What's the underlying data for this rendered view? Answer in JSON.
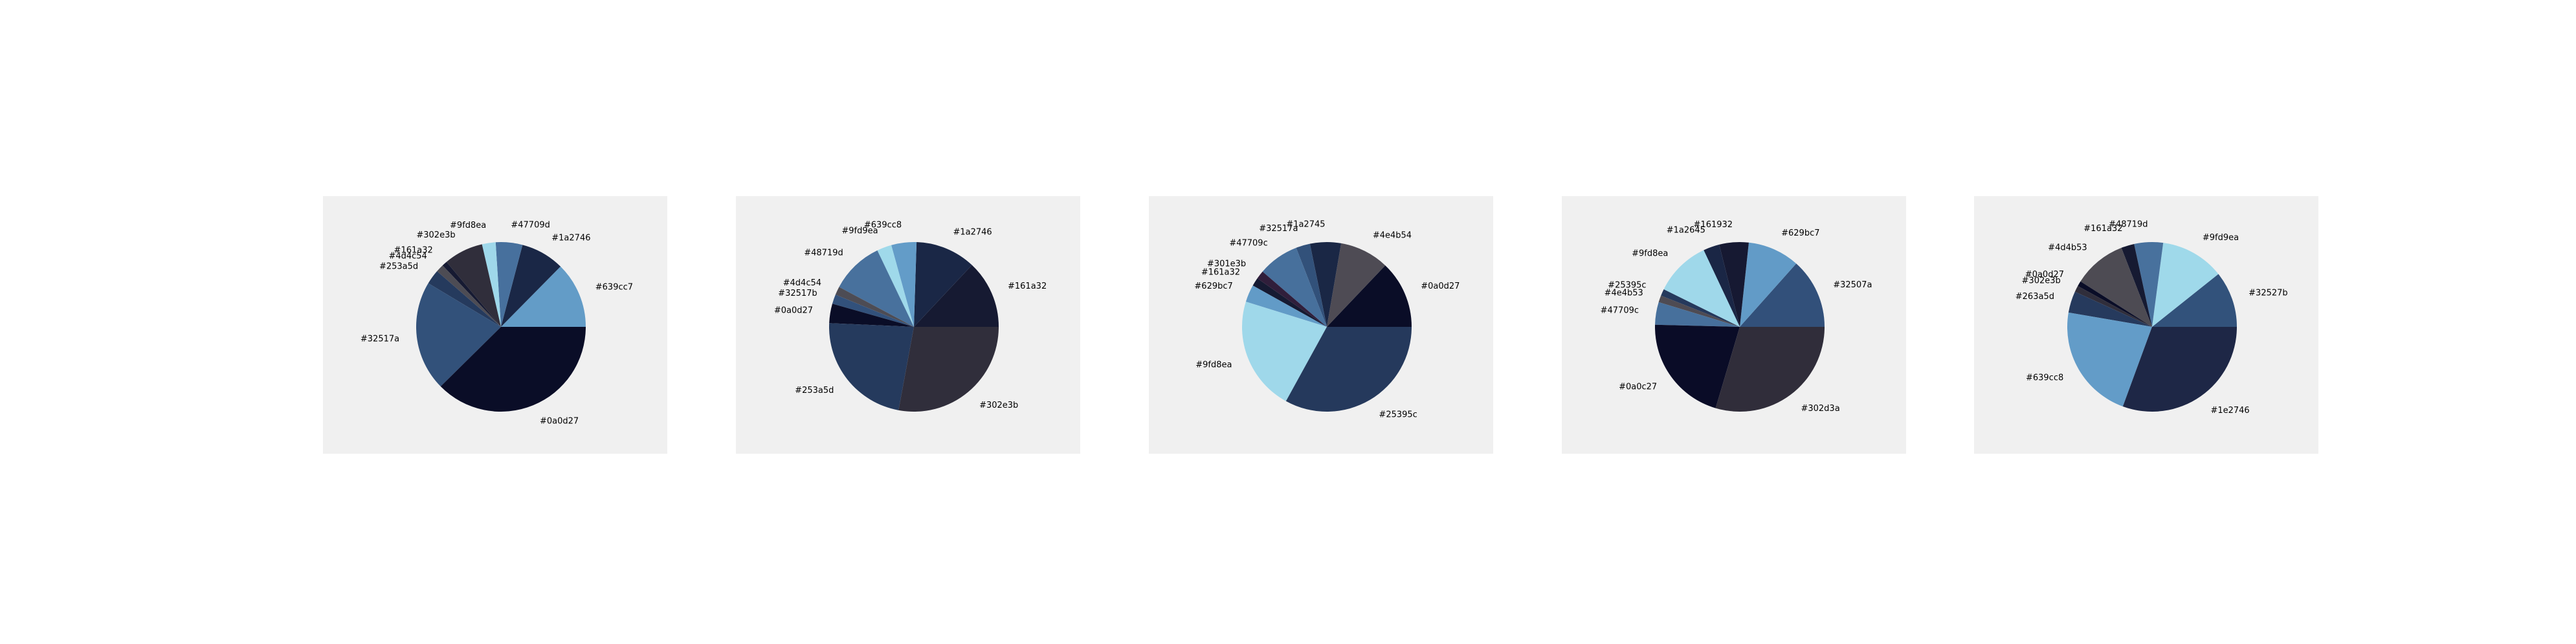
{
  "chart_data": [
    {
      "type": "pie",
      "labels": [
        "#639cc7",
        "#1a2746",
        "#47709d",
        "#9fd8ea",
        "#302e3b",
        "#161a32",
        "#4d4c54",
        "#253a5d",
        "#32517a",
        "#0a0d27"
      ],
      "colors": [
        "#639cc7",
        "#1a2746",
        "#47709d",
        "#9fd8ea",
        "#302e3b",
        "#161a32",
        "#4d4c54",
        "#253a5d",
        "#32517a",
        "#0a0d27"
      ],
      "values": [
        12.6,
        8.3,
        5.1,
        2.6,
        7.5,
        1.0,
        1.5,
        2.8,
        21.0,
        37.6
      ]
    },
    {
      "type": "pie",
      "labels": [
        "#161a32",
        "#1a2746",
        "#639cc8",
        "#9fd9ea",
        "#48719d",
        "#4d4c54",
        "#32517b",
        "#0a0d27",
        "#253a5d",
        "#302e3b"
      ],
      "colors": [
        "#161a32",
        "#1a2746",
        "#639cc8",
        "#9fd9ea",
        "#48719d",
        "#4d4c54",
        "#32517b",
        "#0a0d27",
        "#253a5d",
        "#302e3b"
      ],
      "values": [
        13.0,
        11.5,
        4.8,
        2.8,
        10.1,
        1.6,
        1.8,
        3.7,
        22.8,
        27.9
      ]
    },
    {
      "type": "pie",
      "labels": [
        "#0a0d27",
        "#4e4b54",
        "#1a2745",
        "#32517a",
        "#47709c",
        "#301e3b",
        "#161a32",
        "#629bc7",
        "#9fd8ea",
        "#25395c"
      ],
      "colors": [
        "#0a0d27",
        "#4e4b54",
        "#1a2745",
        "#32517a",
        "#47709c",
        "#301e3b",
        "#161a32",
        "#629bc7",
        "#9fd8ea",
        "#25395c"
      ],
      "values": [
        12.9,
        9.4,
        5.9,
        2.7,
        7.8,
        1.6,
        1.6,
        3.3,
        21.8,
        33.0
      ]
    },
    {
      "type": "pie",
      "labels": [
        "#32507a",
        "#629bc7",
        "#161932",
        "#1a2645",
        "#9fd8ea",
        "#25395c",
        "#4e4b53",
        "#47709c",
        "#0a0c27",
        "#302d3a"
      ],
      "colors": [
        "#32507a",
        "#629bc7",
        "#161932",
        "#1a2645",
        "#9fd8ea",
        "#25395c",
        "#4e4b53",
        "#47709c",
        "#0a0c27",
        "#302d3a"
      ],
      "values": [
        13.4,
        9.9,
        5.6,
        3.1,
        10.7,
        1.3,
        1.3,
        4.3,
        20.8,
        29.6
      ]
    },
    {
      "type": "pie",
      "labels": [
        "#32527b",
        "#9fd9ea",
        "#48719d",
        "#161a32",
        "#4d4b53",
        "#0a0d27",
        "#302e3b",
        "#263a5d",
        "#639cc8",
        "#1e2746"
      ],
      "colors": [
        "#32527b",
        "#9fd9ea",
        "#48719d",
        "#161a32",
        "#4d4b53",
        "#0a0d27",
        "#302e3b",
        "#263a5d",
        "#639cc8",
        "#1e2746"
      ],
      "values": [
        10.7,
        12.2,
        5.5,
        2.5,
        10.1,
        1.0,
        1.2,
        4.1,
        22.1,
        30.6
      ]
    }
  ]
}
